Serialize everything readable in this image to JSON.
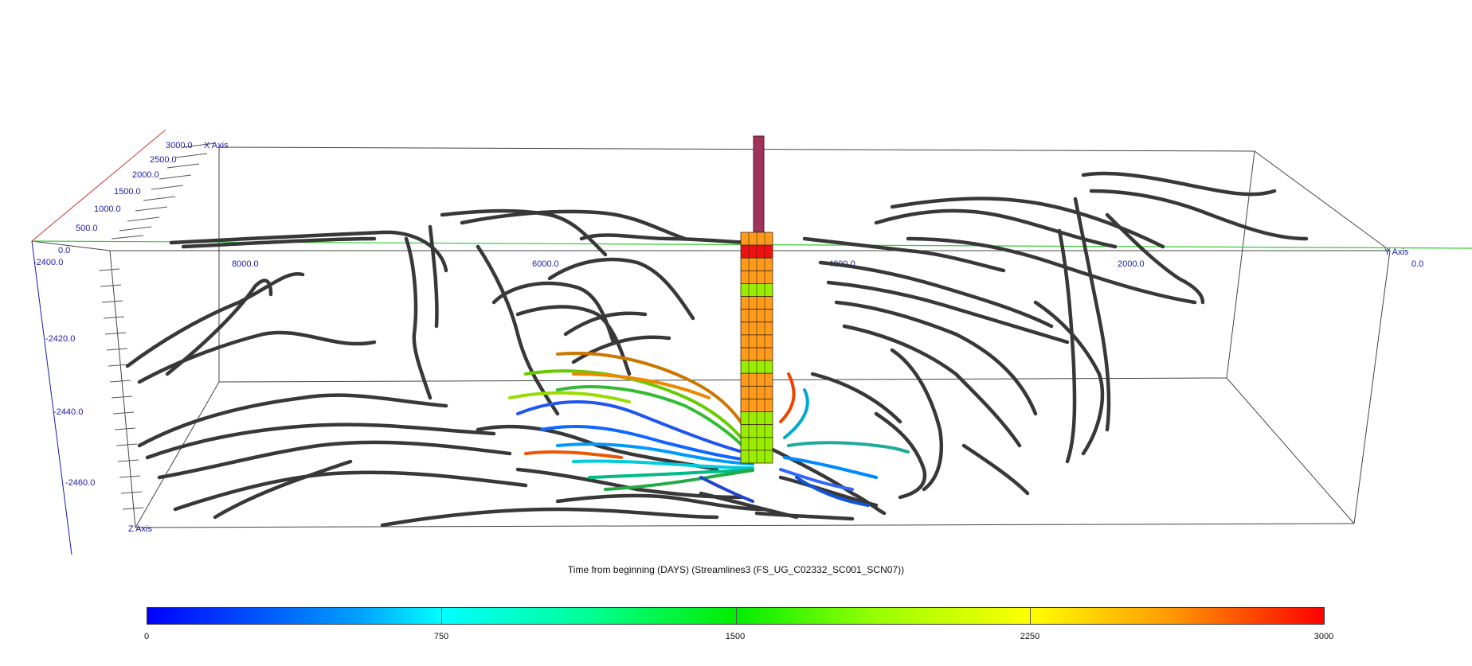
{
  "scene": {
    "x_axis": {
      "name": "X Axis",
      "ticks": [
        "0.0",
        "500.0",
        "1000.0",
        "1500.0",
        "2000.0",
        "2500.0",
        "3000.0"
      ]
    },
    "y_axis": {
      "name": "Y Axis",
      "ticks": [
        "8000.0",
        "6000.0",
        "4000.0",
        "2000.0",
        "0.0"
      ]
    },
    "z_axis": {
      "name": "Z Axis",
      "ticks": [
        "-2400.0",
        "-2420.0",
        "-2440.0",
        "-2460.0"
      ]
    },
    "colors": {
      "streamline_inactive": "#383838",
      "well_pipe": "#a0335a",
      "ground_line": "#33cc33",
      "axis_line": "#1a1aa6",
      "x_axis_line": "#d03030",
      "cell_orange": "#ff9a1a",
      "cell_green": "#99ee00",
      "cell_red": "#ee1111"
    },
    "well_cells_top_to_bottom": [
      "orange",
      "red",
      "orange",
      "orange",
      "green",
      "orange",
      "orange",
      "orange",
      "orange",
      "orange",
      "green",
      "orange",
      "orange",
      "orange",
      "green",
      "green",
      "green",
      "green"
    ]
  },
  "caption": "Time from beginning (DAYS) (Streamlines3   (FS_UG_C02332_SC001_SCN07))",
  "colorbar": {
    "labels": [
      "0",
      "750",
      "1500",
      "2250",
      "3000"
    ],
    "min": 0,
    "max": 3000,
    "gradient": [
      "#0000ff",
      "#00ffff",
      "#00ee00",
      "#ffff00",
      "#ff0000"
    ]
  }
}
